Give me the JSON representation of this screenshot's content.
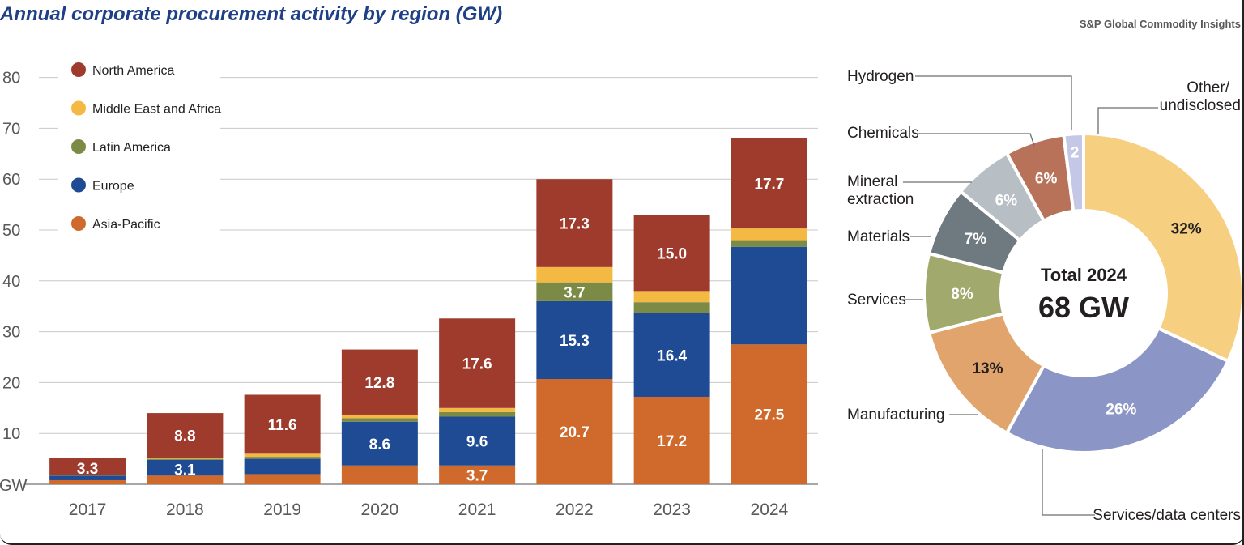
{
  "title": "Annual corporate procurement activity by region (GW)",
  "source": "S&P Global Commodity Insights",
  "colors": {
    "North America": "#9e3b2c",
    "Middle East and Africa": "#f4b942",
    "Latin America": "#7b8a45",
    "Europe": "#1e4b94",
    "Asia-Pacific": "#cf6a2c"
  },
  "chart_data": [
    {
      "type": "bar",
      "stacked": true,
      "title": "Annual corporate procurement activity by region (GW)",
      "ylabel": "GW",
      "ylim": [
        0,
        80
      ],
      "yticks": [
        10,
        20,
        30,
        40,
        50,
        60,
        70,
        80
      ],
      "categories": [
        "2017",
        "2018",
        "2019",
        "2020",
        "2021",
        "2022",
        "2023",
        "2024"
      ],
      "legend_position": "top-left",
      "grid": true,
      "series": [
        {
          "name": "Asia-Pacific",
          "values": [
            0.8,
            1.7,
            2.0,
            3.7,
            3.7,
            20.7,
            17.2,
            27.5
          ],
          "labels": [
            "",
            "",
            "",
            "",
            "3.7",
            "20.7",
            "17.2",
            "27.5"
          ]
        },
        {
          "name": "Europe",
          "values": [
            0.9,
            3.1,
            3.0,
            8.6,
            9.6,
            15.3,
            16.4,
            19.2
          ],
          "labels": [
            "",
            "3.1",
            "",
            "8.6",
            "9.6",
            "15.3",
            "16.4",
            ""
          ]
        },
        {
          "name": "Latin America",
          "values": [
            0.1,
            0.2,
            0.4,
            0.7,
            0.9,
            3.7,
            2.2,
            1.3
          ],
          "labels": [
            "",
            "",
            "",
            "",
            "",
            "3.7",
            "",
            ""
          ]
        },
        {
          "name": "Middle East and Africa",
          "values": [
            0.1,
            0.2,
            0.6,
            0.7,
            0.8,
            3.0,
            2.2,
            2.3
          ],
          "labels": [
            "",
            "",
            "",
            "",
            "",
            "",
            "",
            ""
          ]
        },
        {
          "name": "North America",
          "values": [
            3.3,
            8.8,
            11.6,
            12.8,
            17.6,
            17.3,
            15.0,
            17.7
          ],
          "labels": [
            "3.3",
            "8.8",
            "11.6",
            "12.8",
            "17.6",
            "17.3",
            "15.0",
            "17.7"
          ]
        }
      ]
    },
    {
      "type": "pie",
      "donut": true,
      "center_text": [
        "Total 2024",
        "68 GW"
      ],
      "slices": [
        {
          "name": "Other/ undisclosed",
          "value": 32,
          "label": "32%",
          "color": "#f6cf80"
        },
        {
          "name": "Services/data centers",
          "value": 26,
          "label": "26%",
          "color": "#8c96c6"
        },
        {
          "name": "Manufacturing",
          "value": 13,
          "label": "13%",
          "color": "#e0a46c"
        },
        {
          "name": "Services",
          "value": 8,
          "label": "8%",
          "color": "#a2a96c"
        },
        {
          "name": "Materials",
          "value": 7,
          "label": "7%",
          "color": "#6f7a80"
        },
        {
          "name": "Mineral extraction",
          "value": 6,
          "label": "6%",
          "color": "#b7bec4"
        },
        {
          "name": "Chemicals",
          "value": 6,
          "label": "6%",
          "color": "#b9725a"
        },
        {
          "name": "Hydrogen",
          "value": 2,
          "label": "2",
          "color": "#c4c8e6"
        }
      ]
    }
  ]
}
